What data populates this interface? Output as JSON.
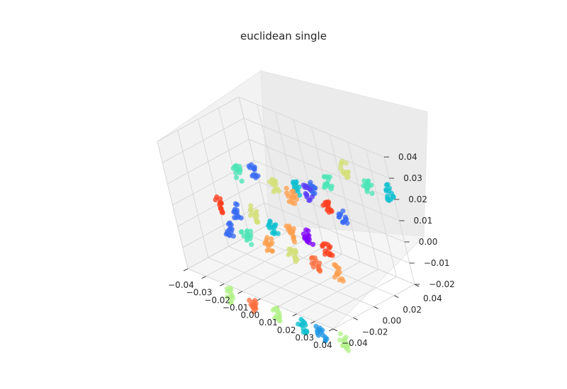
{
  "chart_data": {
    "type": "scatter",
    "title": "euclidean single",
    "projection": "3d",
    "grid": true,
    "axes": {
      "x": {
        "range": [
          -0.04,
          0.04
        ],
        "ticks": [
          "−0.04",
          "−0.03",
          "−0.02",
          "−0.01",
          "0.00",
          "0.01",
          "0.02",
          "0.03",
          "0.04"
        ]
      },
      "y": {
        "range": [
          -0.04,
          0.04
        ],
        "ticks": [
          "−0.04",
          "−0.02",
          "0.00",
          "0.02",
          "0.04"
        ]
      },
      "z": {
        "range": [
          -0.02,
          0.04
        ],
        "ticks": [
          "−0.02",
          "−0.01",
          "0.00",
          "0.01",
          "0.02",
          "0.03",
          "0.04"
        ]
      }
    },
    "colormap": "rainbow",
    "colors": [
      "#8000ff",
      "#5a3dfe",
      "#3a6bf4",
      "#1f96e6",
      "#10c0d0",
      "#4de6b6",
      "#80ff9a",
      "#b4f28a",
      "#d4e07a",
      "#f5c060",
      "#ffa050",
      "#ff7040",
      "#ff4020",
      "#ff0000"
    ],
    "clusters": [
      {
        "x": -0.022,
        "y": 0.045,
        "z": 0.002,
        "color": "#10c0d0"
      },
      {
        "x": -0.012,
        "y": 0.045,
        "z": 0.005,
        "color": "#3a6bf4"
      },
      {
        "x": -0.002,
        "y": 0.045,
        "z": 0.012,
        "color": "#4de6b6"
      },
      {
        "x": 0.01,
        "y": 0.045,
        "z": 0.022,
        "color": "#d4e07a"
      },
      {
        "x": 0.022,
        "y": 0.045,
        "z": 0.018,
        "color": "#4de6b6"
      },
      {
        "x": 0.035,
        "y": 0.045,
        "z": 0.02,
        "color": "#10c0d0"
      },
      {
        "x": -0.038,
        "y": 0.02,
        "z": 0.01,
        "color": "#4de6b6"
      },
      {
        "x": -0.028,
        "y": 0.02,
        "z": 0.015,
        "color": "#3a6bf4"
      },
      {
        "x": -0.018,
        "y": 0.02,
        "z": 0.012,
        "color": "#d4e07a"
      },
      {
        "x": -0.008,
        "y": 0.02,
        "z": 0.01,
        "color": "#ffa050"
      },
      {
        "x": 0.002,
        "y": 0.02,
        "z": 0.015,
        "color": "#5a3dfe"
      },
      {
        "x": 0.012,
        "y": 0.02,
        "z": 0.012,
        "color": "#ff4020"
      },
      {
        "x": 0.02,
        "y": 0.02,
        "z": 0.01,
        "color": "#3a6bf4"
      },
      {
        "x": -0.04,
        "y": 0.0,
        "z": 0.0,
        "color": "#ff4020"
      },
      {
        "x": -0.03,
        "y": 0.0,
        "z": 0.0,
        "color": "#3a6bf4"
      },
      {
        "x": -0.02,
        "y": 0.0,
        "z": 0.002,
        "color": "#d4e07a"
      },
      {
        "x": -0.01,
        "y": 0.0,
        "z": 0.0,
        "color": "#10c0d0"
      },
      {
        "x": 0.0,
        "y": 0.0,
        "z": 0.0,
        "color": "#ffa050"
      },
      {
        "x": 0.01,
        "y": 0.0,
        "z": 0.002,
        "color": "#8000ff"
      },
      {
        "x": 0.02,
        "y": 0.0,
        "z": 0.0,
        "color": "#ff4020"
      },
      {
        "x": -0.03,
        "y": -0.01,
        "z": -0.005,
        "color": "#3a6bf4"
      },
      {
        "x": -0.02,
        "y": -0.01,
        "z": -0.005,
        "color": "#4de6b6"
      },
      {
        "x": -0.008,
        "y": -0.01,
        "z": -0.005,
        "color": "#ffa050"
      },
      {
        "x": 0.005,
        "y": -0.01,
        "z": -0.005,
        "color": "#d4e07a"
      },
      {
        "x": 0.018,
        "y": -0.01,
        "z": -0.005,
        "color": "#ff7040"
      },
      {
        "x": 0.03,
        "y": -0.01,
        "z": -0.005,
        "color": "#ffa050"
      },
      {
        "x": -0.025,
        "y": -0.03,
        "z": -0.03,
        "color": "#b4f28a"
      },
      {
        "x": -0.012,
        "y": -0.03,
        "z": -0.03,
        "color": "#ff7040"
      },
      {
        "x": 0.0,
        "y": -0.03,
        "z": -0.03,
        "color": "#b4f28a"
      },
      {
        "x": 0.015,
        "y": -0.03,
        "z": -0.03,
        "color": "#10c0d0"
      },
      {
        "x": 0.025,
        "y": -0.03,
        "z": -0.03,
        "color": "#1f96e6"
      },
      {
        "x": 0.038,
        "y": -0.03,
        "z": -0.03,
        "color": "#b4f28a"
      }
    ]
  }
}
